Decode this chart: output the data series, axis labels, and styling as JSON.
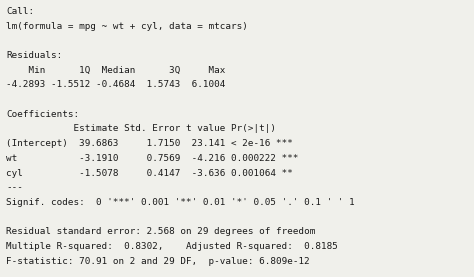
{
  "background_color": "#f0f0eb",
  "text_color": "#1a1a1a",
  "font_family": "monospace",
  "font_size": 6.7,
  "lines": [
    "Call:",
    "lm(formula = mpg ~ wt + cyl, data = mtcars)",
    "",
    "Residuals:",
    "    Min      1Q  Median      3Q     Max",
    "-4.2893 -1.5512 -0.4684  1.5743  6.1004",
    "",
    "Coefficients:",
    "            Estimate Std. Error t value Pr(>|t|)   ",
    "(Intercept)  39.6863     1.7150  23.141 < 2e-16 ***",
    "wt           -3.1910     0.7569  -4.216 0.000222 ***",
    "cyl          -1.5078     0.4147  -3.636 0.001064 ** ",
    "---",
    "Signif. codes:  0 '***' 0.001 '**' 0.01 '*' 0.05 '.' 0.1 ' ' 1",
    "",
    "Residual standard error: 2.568 on 29 degrees of freedom",
    "Multiple R-squared:  0.8302,    Adjusted R-squared:  0.8185",
    "F-statistic: 70.91 on 2 and 29 DF,  p-value: 6.809e-12"
  ]
}
